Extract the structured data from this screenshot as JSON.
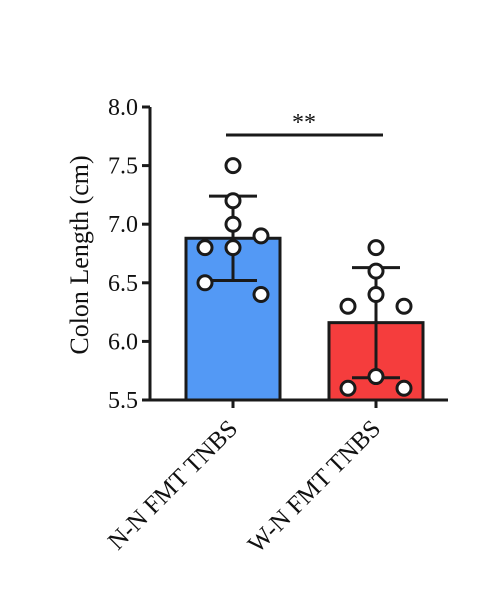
{
  "chart_data": {
    "type": "bar",
    "ylabel": "Colon Length (cm)",
    "ylim": [
      5.5,
      8.0
    ],
    "yticks": [
      "5.5",
      "6.0",
      "6.5",
      "7.0",
      "7.5",
      "8.0"
    ],
    "categories": [
      "N-N FMT TNBS",
      "W-N FMT TNBS"
    ],
    "bars": [
      {
        "category": "N-N FMT TNBS",
        "mean": 6.88,
        "sd": 0.36,
        "color": "#5399f5",
        "points": [
          7.5,
          7.2,
          7.0,
          6.8,
          6.8,
          6.9,
          6.5,
          6.4
        ]
      },
      {
        "category": "W-N FMT TNBS",
        "mean": 6.16,
        "sd": 0.47,
        "color": "#f53d3d",
        "points": [
          6.8,
          6.6,
          6.4,
          6.3,
          6.3,
          5.7,
          5.6,
          5.6
        ]
      }
    ],
    "significance": {
      "label": "**",
      "between": [
        "N-N FMT TNBS",
        "W-N FMT TNBS"
      ]
    },
    "grid": false,
    "legend": "none"
  }
}
